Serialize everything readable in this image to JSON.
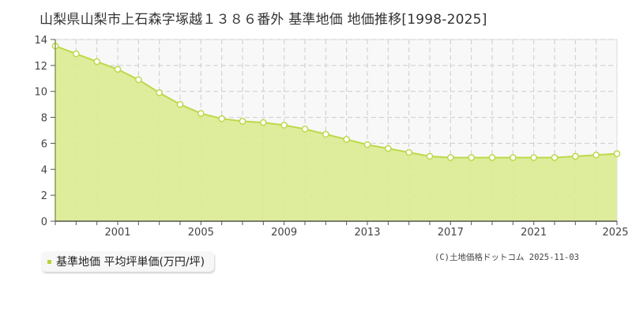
{
  "title": "山梨県山梨市上石森字塚越１３８６番外 基準地価 地価推移[1998-2025]",
  "legend": {
    "label": "基準地価 平均坪単価(万円/坪)",
    "swatch_color": "#b5d33a"
  },
  "copyright": "(C)土地価格ドットコム 2025-11-03",
  "colors": {
    "fill": "#dbeb93",
    "line": "#bcd94a",
    "marker_fill": "#ffffff",
    "marker_stroke": "#bcd94a",
    "grid": "#cccccc",
    "plot_bg_upper": "#f8f8f8",
    "axis": "#777755"
  },
  "chart_data": {
    "type": "area",
    "title": "山梨県山梨市上石森字塚越１３８６番外 基準地価 地価推移[1998-2025]",
    "xlabel": "",
    "ylabel": "",
    "x": [
      1998,
      1999,
      2000,
      2001,
      2002,
      2003,
      2004,
      2005,
      2006,
      2007,
      2008,
      2009,
      2010,
      2011,
      2012,
      2013,
      2014,
      2015,
      2016,
      2017,
      2018,
      2019,
      2020,
      2021,
      2022,
      2023,
      2024,
      2025
    ],
    "series": [
      {
        "name": "基準地価 平均坪単価(万円/坪)",
        "values": [
          13.5,
          12.9,
          12.3,
          11.7,
          10.9,
          9.9,
          9.0,
          8.3,
          7.9,
          7.7,
          7.6,
          7.4,
          7.1,
          6.7,
          6.3,
          5.9,
          5.6,
          5.3,
          5.0,
          4.9,
          4.9,
          4.9,
          4.9,
          4.9,
          4.9,
          5.0,
          5.1,
          5.2
        ]
      }
    ],
    "xticks": [
      2001,
      2005,
      2009,
      2013,
      2017,
      2021,
      2025
    ],
    "yticks": [
      0,
      2,
      4,
      6,
      8,
      10,
      12,
      14
    ],
    "xlim": [
      1998,
      2025
    ],
    "ylim": [
      0,
      14
    ],
    "grid": true,
    "legend_position": "bottom-left"
  }
}
